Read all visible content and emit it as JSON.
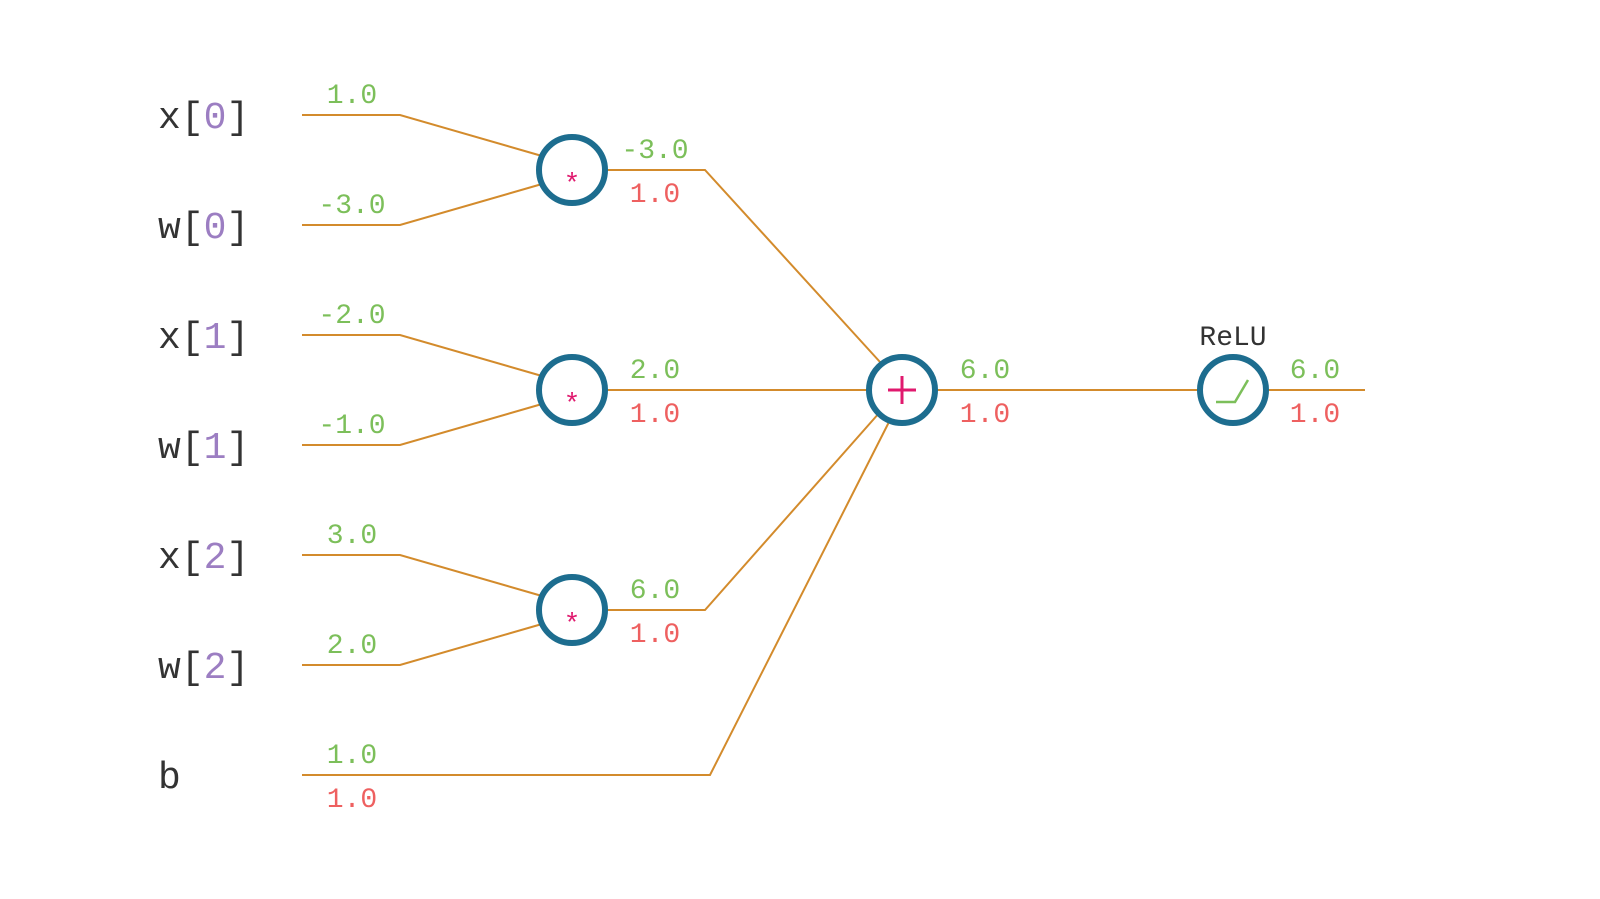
{
  "colors": {
    "wire": "#d38b2c",
    "node_border": "#1d6d8f",
    "operator": "#e0196e",
    "forward_value": "#7cbf5a",
    "gradient_value": "#ee6060",
    "index": "#9c7ec2",
    "label": "#333333"
  },
  "inputs": [
    {
      "name": "x",
      "open": "[",
      "index": "0",
      "close": "]",
      "value": "1.0"
    },
    {
      "name": "w",
      "open": "[",
      "index": "0",
      "close": "]",
      "value": "-3.0"
    },
    {
      "name": "x",
      "open": "[",
      "index": "1",
      "close": "]",
      "value": "-2.0"
    },
    {
      "name": "w",
      "open": "[",
      "index": "1",
      "close": "]",
      "value": "-1.0"
    },
    {
      "name": "x",
      "open": "[",
      "index": "2",
      "close": "]",
      "value": "3.0"
    },
    {
      "name": "w",
      "open": "[",
      "index": "2",
      "close": "]",
      "value": "2.0"
    }
  ],
  "bias": {
    "name": "b",
    "value": "1.0",
    "grad": "1.0"
  },
  "mul_nodes": [
    {
      "symbol": "*",
      "value": "-3.0",
      "grad": "1.0"
    },
    {
      "symbol": "*",
      "value": "2.0",
      "grad": "1.0"
    },
    {
      "symbol": "*",
      "value": "6.0",
      "grad": "1.0"
    }
  ],
  "sum_node": {
    "symbol": "+",
    "value": "6.0",
    "grad": "1.0"
  },
  "relu_node": {
    "label": "ReLU",
    "value": "6.0",
    "grad": "1.0",
    "icon": "relu-ramp-icon"
  }
}
